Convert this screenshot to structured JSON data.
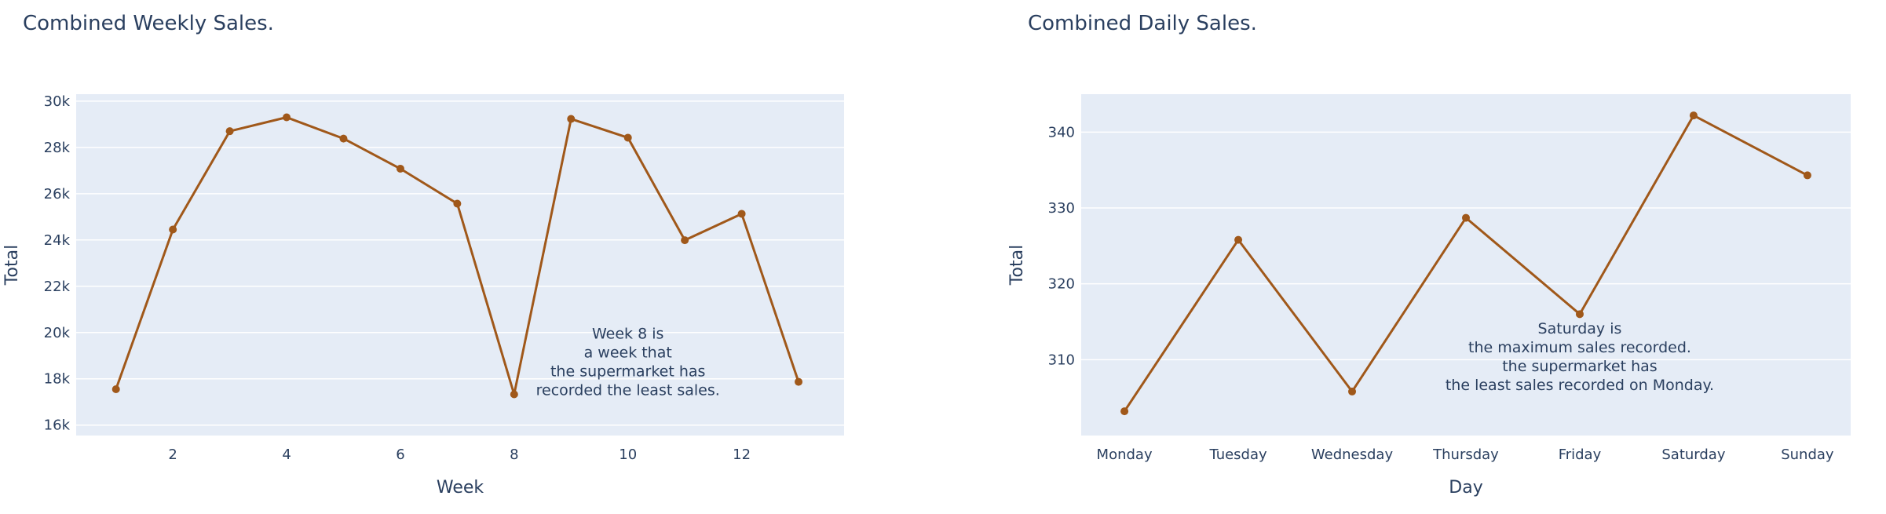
{
  "colors": {
    "line": "#a0581a",
    "plot_bg": "#e5ecf6",
    "grid": "#ffffff",
    "text": "#2a3f5f"
  },
  "chart_data": [
    {
      "type": "line",
      "title": "Combined Weekly Sales.",
      "xlabel": "Week",
      "ylabel": "Total",
      "x": [
        1,
        2,
        3,
        4,
        5,
        6,
        7,
        8,
        9,
        10,
        11,
        12,
        13
      ],
      "values": [
        17550,
        24450,
        28700,
        29300,
        28380,
        27080,
        25570,
        17330,
        29230,
        28420,
        23990,
        25130,
        17870
      ],
      "xlim": [
        0.3,
        13.8
      ],
      "ylim": [
        15550,
        30300
      ],
      "xticks": [
        2,
        4,
        6,
        8,
        10,
        12
      ],
      "xtick_labels": [
        "2",
        "4",
        "6",
        "8",
        "10",
        "12"
      ],
      "yticks": [
        16000,
        18000,
        20000,
        22000,
        24000,
        26000,
        28000,
        30000
      ],
      "ytick_labels": [
        "16k",
        "18k",
        "20k",
        "22k",
        "24k",
        "26k",
        "28k",
        "30k"
      ],
      "grid": true,
      "annotation": {
        "x": 10,
        "y": 17300,
        "lines": [
          "Week 8 is",
          "a week that",
          "the supermarket has",
          "recorded the least sales."
        ]
      }
    },
    {
      "type": "line",
      "title": "Combined Daily Sales.",
      "xlabel": "Day",
      "ylabel": "Total",
      "categories": [
        "Monday",
        "Tuesday",
        "Wednesday",
        "Thursday",
        "Friday",
        "Saturday",
        "Sunday"
      ],
      "values": [
        303.2,
        325.8,
        305.8,
        328.7,
        316.0,
        342.2,
        334.3
      ],
      "xlim": [
        -0.38,
        6.38
      ],
      "ylim": [
        300,
        345
      ],
      "yticks": [
        310,
        320,
        330,
        340
      ],
      "ytick_labels": [
        "310",
        "320",
        "330",
        "340"
      ],
      "grid": true,
      "annotation": {
        "x": 4,
        "y": 306,
        "lines": [
          "Saturday is",
          "the maximum sales recorded.",
          "the supermarket has",
          "the least sales recorded on Monday."
        ]
      }
    }
  ]
}
